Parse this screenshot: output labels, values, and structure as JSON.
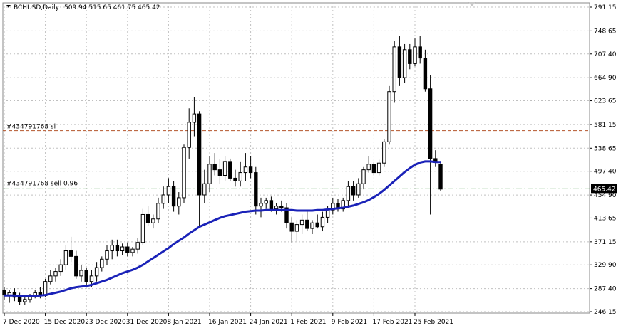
{
  "header": {
    "symbol": "BCHUSD,Daily",
    "ohlc": "509.94 515.65 461.75 465.42"
  },
  "colors": {
    "bull_body": "#ffffff",
    "bear_body": "#000000",
    "candle_outline": "#000000",
    "moving_average": "#1a22b8",
    "sl_line": "#b4562c",
    "order_line": "#2e8b2e",
    "price_tag_bg": "#000000",
    "price_tag_text": "#ffffff",
    "grid": "#c0c0c0",
    "background": "#ffffff"
  },
  "levels": {
    "sl_label": "#434791768 sl",
    "sl_price": 570,
    "order_label": "#434791768 sell 0.96",
    "order_price": 466,
    "current_price_tag": "465.42"
  },
  "chart_data": {
    "type": "candlestick",
    "title": "BCHUSD,Daily",
    "y_ticks": [
      "791.15",
      "748.65",
      "707.40",
      "664.90",
      "623.65",
      "581.15",
      "538.65",
      "497.40",
      "454.90",
      "413.65",
      "371.15",
      "329.90",
      "287.40",
      "246.15"
    ],
    "y_tick_values": [
      791.15,
      748.65,
      707.4,
      664.9,
      623.65,
      581.15,
      538.65,
      497.4,
      454.9,
      413.65,
      371.15,
      329.9,
      287.4,
      246.15
    ],
    "x_ticks": [
      "7 Dec 2020",
      "15 Dec 2020",
      "23 Dec 2020",
      "31 Dec 2020",
      "8 Jan 2021",
      "16 Jan 2021",
      "24 Jan 2021",
      "1 Feb 2021",
      "9 Feb 2021",
      "17 Feb 2021",
      "25 Feb 2021"
    ],
    "x_tick_index": [
      0,
      8,
      16,
      24,
      32,
      40,
      48,
      56,
      64,
      72,
      80
    ],
    "ylim": [
      246.15,
      791.15
    ],
    "grid": true,
    "candles": [
      {
        "o": 285,
        "h": 290,
        "l": 268,
        "c": 276
      },
      {
        "o": 276,
        "h": 285,
        "l": 262,
        "c": 280
      },
      {
        "o": 280,
        "h": 288,
        "l": 265,
        "c": 272
      },
      {
        "o": 272,
        "h": 280,
        "l": 258,
        "c": 264
      },
      {
        "o": 264,
        "h": 272,
        "l": 258,
        "c": 268
      },
      {
        "o": 268,
        "h": 278,
        "l": 262,
        "c": 275
      },
      {
        "o": 275,
        "h": 285,
        "l": 270,
        "c": 280
      },
      {
        "o": 280,
        "h": 290,
        "l": 270,
        "c": 275
      },
      {
        "o": 275,
        "h": 305,
        "l": 272,
        "c": 300
      },
      {
        "o": 300,
        "h": 320,
        "l": 295,
        "c": 310
      },
      {
        "o": 310,
        "h": 325,
        "l": 300,
        "c": 318
      },
      {
        "o": 318,
        "h": 340,
        "l": 310,
        "c": 330
      },
      {
        "o": 330,
        "h": 365,
        "l": 320,
        "c": 355
      },
      {
        "o": 355,
        "h": 380,
        "l": 335,
        "c": 345
      },
      {
        "o": 345,
        "h": 355,
        "l": 305,
        "c": 310
      },
      {
        "o": 310,
        "h": 330,
        "l": 300,
        "c": 320
      },
      {
        "o": 320,
        "h": 325,
        "l": 290,
        "c": 300
      },
      {
        "o": 300,
        "h": 320,
        "l": 290,
        "c": 310
      },
      {
        "o": 310,
        "h": 335,
        "l": 300,
        "c": 325
      },
      {
        "o": 325,
        "h": 345,
        "l": 318,
        "c": 340
      },
      {
        "o": 340,
        "h": 365,
        "l": 330,
        "c": 355
      },
      {
        "o": 355,
        "h": 375,
        "l": 340,
        "c": 365
      },
      {
        "o": 365,
        "h": 375,
        "l": 345,
        "c": 355
      },
      {
        "o": 355,
        "h": 368,
        "l": 348,
        "c": 362
      },
      {
        "o": 362,
        "h": 370,
        "l": 345,
        "c": 352
      },
      {
        "o": 352,
        "h": 362,
        "l": 345,
        "c": 358
      },
      {
        "o": 358,
        "h": 378,
        "l": 350,
        "c": 370
      },
      {
        "o": 370,
        "h": 430,
        "l": 365,
        "c": 420
      },
      {
        "o": 420,
        "h": 435,
        "l": 400,
        "c": 405
      },
      {
        "o": 405,
        "h": 420,
        "l": 395,
        "c": 412
      },
      {
        "o": 412,
        "h": 450,
        "l": 405,
        "c": 440
      },
      {
        "o": 440,
        "h": 470,
        "l": 430,
        "c": 455
      },
      {
        "o": 455,
        "h": 485,
        "l": 440,
        "c": 470
      },
      {
        "o": 470,
        "h": 480,
        "l": 425,
        "c": 435
      },
      {
        "o": 435,
        "h": 460,
        "l": 420,
        "c": 450
      },
      {
        "o": 450,
        "h": 545,
        "l": 440,
        "c": 540
      },
      {
        "o": 540,
        "h": 610,
        "l": 520,
        "c": 585
      },
      {
        "o": 585,
        "h": 630,
        "l": 560,
        "c": 600
      },
      {
        "o": 600,
        "h": 605,
        "l": 400,
        "c": 455
      },
      {
        "o": 455,
        "h": 500,
        "l": 440,
        "c": 475
      },
      {
        "o": 475,
        "h": 525,
        "l": 460,
        "c": 510
      },
      {
        "o": 510,
        "h": 530,
        "l": 490,
        "c": 500
      },
      {
        "o": 500,
        "h": 520,
        "l": 475,
        "c": 490
      },
      {
        "o": 490,
        "h": 525,
        "l": 480,
        "c": 515
      },
      {
        "o": 515,
        "h": 520,
        "l": 480,
        "c": 485
      },
      {
        "o": 485,
        "h": 500,
        "l": 470,
        "c": 480
      },
      {
        "o": 480,
        "h": 515,
        "l": 470,
        "c": 495
      },
      {
        "o": 495,
        "h": 530,
        "l": 480,
        "c": 505
      },
      {
        "o": 505,
        "h": 525,
        "l": 485,
        "c": 495
      },
      {
        "o": 495,
        "h": 505,
        "l": 420,
        "c": 435
      },
      {
        "o": 435,
        "h": 450,
        "l": 415,
        "c": 440
      },
      {
        "o": 440,
        "h": 450,
        "l": 430,
        "c": 445
      },
      {
        "o": 445,
        "h": 452,
        "l": 425,
        "c": 430
      },
      {
        "o": 430,
        "h": 440,
        "l": 420,
        "c": 435
      },
      {
        "o": 435,
        "h": 445,
        "l": 425,
        "c": 432
      },
      {
        "o": 432,
        "h": 440,
        "l": 395,
        "c": 405
      },
      {
        "o": 405,
        "h": 415,
        "l": 370,
        "c": 390
      },
      {
        "o": 390,
        "h": 410,
        "l": 372,
        "c": 402
      },
      {
        "o": 402,
        "h": 420,
        "l": 385,
        "c": 410
      },
      {
        "o": 410,
        "h": 425,
        "l": 390,
        "c": 395
      },
      {
        "o": 395,
        "h": 410,
        "l": 385,
        "c": 405
      },
      {
        "o": 405,
        "h": 420,
        "l": 395,
        "c": 398
      },
      {
        "o": 398,
        "h": 425,
        "l": 390,
        "c": 415
      },
      {
        "o": 415,
        "h": 435,
        "l": 405,
        "c": 428
      },
      {
        "o": 428,
        "h": 450,
        "l": 420,
        "c": 440
      },
      {
        "o": 440,
        "h": 448,
        "l": 425,
        "c": 430
      },
      {
        "o": 430,
        "h": 450,
        "l": 425,
        "c": 445
      },
      {
        "o": 445,
        "h": 480,
        "l": 435,
        "c": 470
      },
      {
        "o": 470,
        "h": 480,
        "l": 445,
        "c": 455
      },
      {
        "o": 455,
        "h": 485,
        "l": 450,
        "c": 475
      },
      {
        "o": 475,
        "h": 505,
        "l": 465,
        "c": 500
      },
      {
        "o": 500,
        "h": 525,
        "l": 495,
        "c": 510
      },
      {
        "o": 510,
        "h": 515,
        "l": 490,
        "c": 495
      },
      {
        "o": 495,
        "h": 518,
        "l": 490,
        "c": 512
      },
      {
        "o": 512,
        "h": 555,
        "l": 505,
        "c": 550
      },
      {
        "o": 550,
        "h": 650,
        "l": 545,
        "c": 640
      },
      {
        "o": 640,
        "h": 730,
        "l": 620,
        "c": 720
      },
      {
        "o": 720,
        "h": 740,
        "l": 650,
        "c": 665
      },
      {
        "o": 665,
        "h": 725,
        "l": 655,
        "c": 715
      },
      {
        "o": 715,
        "h": 725,
        "l": 680,
        "c": 690
      },
      {
        "o": 690,
        "h": 735,
        "l": 685,
        "c": 720
      },
      {
        "o": 720,
        "h": 740,
        "l": 690,
        "c": 700
      },
      {
        "o": 700,
        "h": 715,
        "l": 640,
        "c": 645
      },
      {
        "o": 645,
        "h": 670,
        "l": 420,
        "c": 520
      },
      {
        "o": 520,
        "h": 535,
        "l": 505,
        "c": 515
      },
      {
        "o": 509.94,
        "h": 515.65,
        "l": 461.75,
        "c": 465.42
      }
    ],
    "ma": [
      275,
      275,
      275,
      274,
      274,
      274,
      274,
      275,
      276,
      278,
      280,
      282,
      285,
      288,
      290,
      291,
      292,
      294,
      297,
      300,
      303,
      307,
      311,
      315,
      318,
      321,
      325,
      330,
      336,
      342,
      348,
      354,
      360,
      367,
      373,
      379,
      386,
      392,
      398,
      402,
      406,
      410,
      414,
      417,
      419,
      421,
      423,
      425,
      426,
      427,
      427,
      428,
      428,
      428,
      428,
      428,
      428,
      427,
      427,
      427,
      427,
      428,
      428,
      429,
      430,
      431,
      432,
      434,
      436,
      439,
      442,
      446,
      451,
      457,
      464,
      472,
      480,
      488,
      496,
      503,
      509,
      513,
      515,
      515,
      514,
      514
    ]
  }
}
